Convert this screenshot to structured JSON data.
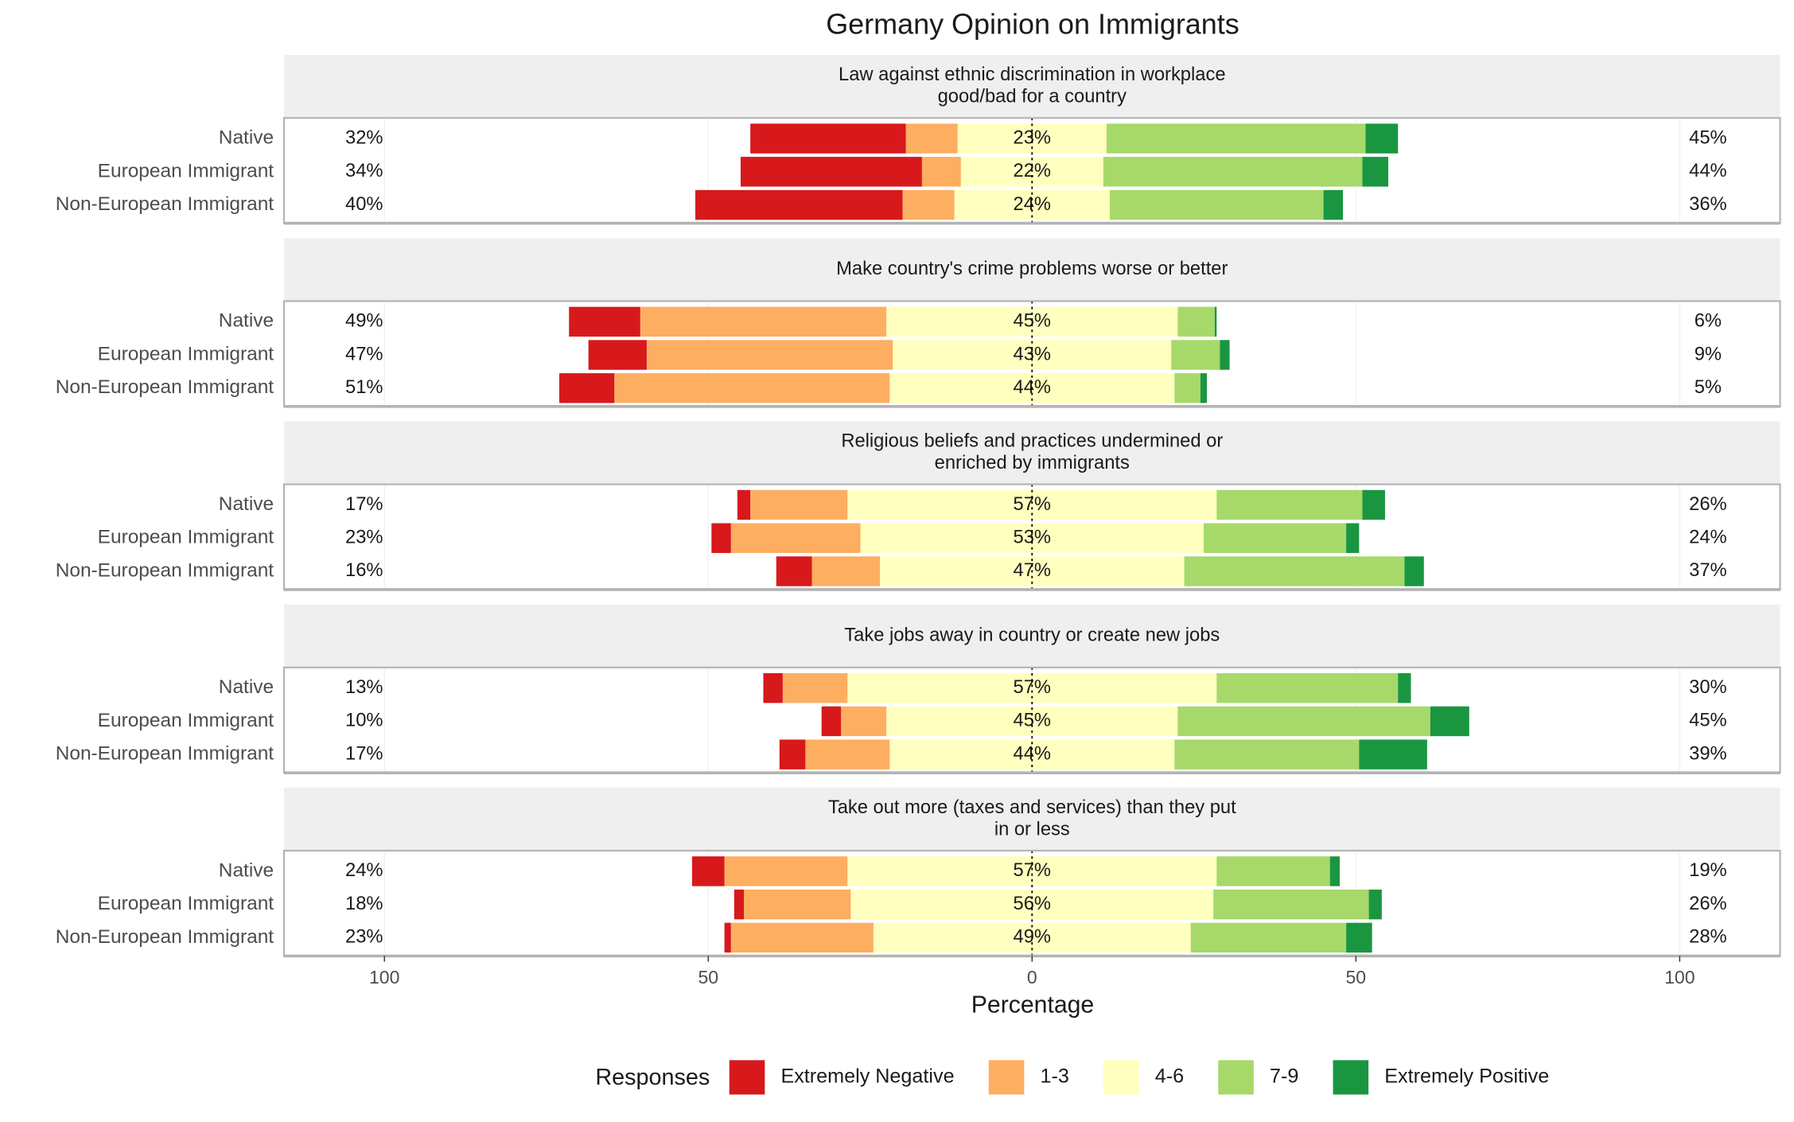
{
  "chart_data": {
    "type": "likert",
    "title": "Germany Opinion on Immigrants",
    "xlabel": "Percentage",
    "xlim": [
      -115.5,
      115.5
    ],
    "xticks": [
      {
        "value": -100,
        "label": "100"
      },
      {
        "value": -50,
        "label": "50"
      },
      0,
      50,
      100
    ],
    "legend_title": "Responses",
    "legend_position": "bottom",
    "series": [
      {
        "name": "Extremely Negative",
        "color": "#d7191c"
      },
      {
        "name": "1-3",
        "color": "#fdae61"
      },
      {
        "name": "4-6",
        "color": "#ffffbf"
      },
      {
        "name": "7-9",
        "color": "#a6d96a"
      },
      {
        "name": "Extremely Positive",
        "color": "#1a9641"
      }
    ],
    "rows": [
      "Native",
      "European Immigrant",
      "Non-European Immigrant"
    ],
    "panels": [
      {
        "title_lines": [
          "Law against ethnic discrimination in workplace",
          "good/bad for a country"
        ],
        "series": [
          {
            "values": [
              24,
              28,
              32
            ]
          },
          {
            "values": [
              8,
              6,
              8
            ]
          },
          {
            "values": [
              23,
              22,
              24
            ],
            "value_labels": [
              "23%",
              "22%",
              "24%"
            ]
          },
          {
            "values": [
              40,
              40,
              33
            ]
          },
          {
            "values": [
              5,
              4,
              3
            ]
          }
        ],
        "negative_total": {
          "values": [
            32,
            34,
            40
          ],
          "value_labels": [
            "32%",
            "34%",
            "40%"
          ]
        },
        "positive_total": {
          "values": [
            45,
            44,
            36
          ],
          "value_labels": [
            "45%",
            "44%",
            "36%"
          ]
        }
      },
      {
        "title_lines": [
          "Make country's crime problems worse or better"
        ],
        "series": [
          {
            "values": [
              11,
              9,
              8.5
            ]
          },
          {
            "values": [
              38,
              38,
              42.5
            ]
          },
          {
            "values": [
              45,
              43,
              44
            ],
            "value_labels": [
              "45%",
              "43%",
              "44%"
            ]
          },
          {
            "values": [
              5.7,
              7.5,
              4
            ]
          },
          {
            "values": [
              0.3,
              1.5,
              1
            ]
          }
        ],
        "negative_total": {
          "values": [
            49,
            47,
            51
          ],
          "value_labels": [
            "49%",
            "47%",
            "51%"
          ]
        },
        "positive_total": {
          "values": [
            6,
            9,
            5
          ],
          "value_labels": [
            "6%",
            "9%",
            "5%"
          ]
        }
      },
      {
        "title_lines": [
          "Religious beliefs and practices undermined or",
          "enriched by immigrants"
        ],
        "series": [
          {
            "values": [
              2,
              3,
              5.5
            ]
          },
          {
            "values": [
              15,
              20,
              10.5
            ]
          },
          {
            "values": [
              57,
              53,
              47
            ],
            "value_labels": [
              "57%",
              "53%",
              "47%"
            ]
          },
          {
            "values": [
              22.5,
              22,
              34
            ]
          },
          {
            "values": [
              3.5,
              2,
              3
            ]
          }
        ],
        "negative_total": {
          "values": [
            17,
            23,
            16
          ],
          "value_labels": [
            "17%",
            "23%",
            "16%"
          ]
        },
        "positive_total": {
          "values": [
            26,
            24,
            37
          ],
          "value_labels": [
            "26%",
            "24%",
            "37%"
          ]
        }
      },
      {
        "title_lines": [
          "Take jobs away in country or create new jobs"
        ],
        "series": [
          {
            "values": [
              3,
              3,
              4
            ]
          },
          {
            "values": [
              10,
              7,
              13
            ]
          },
          {
            "values": [
              57,
              45,
              44
            ],
            "value_labels": [
              "57%",
              "45%",
              "44%"
            ]
          },
          {
            "values": [
              28,
              39,
              28.5
            ]
          },
          {
            "values": [
              2,
              6,
              10.5
            ]
          }
        ],
        "negative_total": {
          "values": [
            13,
            10,
            17
          ],
          "value_labels": [
            "13%",
            "10%",
            "17%"
          ]
        },
        "positive_total": {
          "values": [
            30,
            45,
            39
          ],
          "value_labels": [
            "30%",
            "45%",
            "39%"
          ]
        }
      },
      {
        "title_lines": [
          "Take out more (taxes and services) than they put",
          "in or less"
        ],
        "series": [
          {
            "values": [
              5,
              1.5,
              1
            ]
          },
          {
            "values": [
              19,
              16.5,
              22
            ]
          },
          {
            "values": [
              57,
              56,
              49
            ],
            "value_labels": [
              "57%",
              "56%",
              "49%"
            ]
          },
          {
            "values": [
              17.5,
              24,
              24
            ]
          },
          {
            "values": [
              1.5,
              2,
              4
            ]
          }
        ],
        "negative_total": {
          "values": [
            24,
            18,
            23
          ],
          "value_labels": [
            "24%",
            "18%",
            "23%"
          ]
        },
        "positive_total": {
          "values": [
            19,
            26,
            28
          ],
          "value_labels": [
            "19%",
            "26%",
            "28%"
          ]
        }
      }
    ]
  }
}
